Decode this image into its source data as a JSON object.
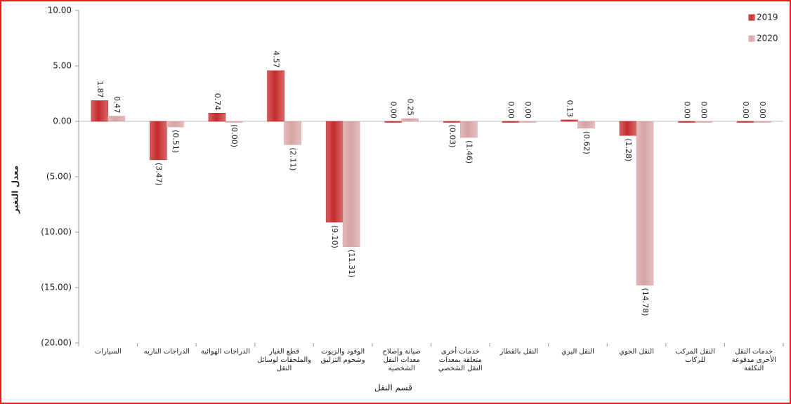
{
  "chart_data": {
    "type": "bar",
    "y_label": "معدل التغير",
    "x_label": "قسم النقل",
    "categories": [
      "السيارات",
      "الدراجات الناريه",
      "الدراجات الهوائية",
      "قطع الغيار والملحقات لوسائل النقل",
      "الوقود والزيوت وشحوم التزليق",
      "صيانة وإصلاح معدات النقل الشخصيه",
      "خدمات أخرى متعلقة بمعدات النقل الشخصي",
      "النقل بالقطار",
      "النقل البري",
      "النقل الجوي",
      "النقل المركب للركاب",
      "خدمات النقل الأخرى مدفوعة التكلفة"
    ],
    "series": [
      {
        "name": "2019",
        "color": "#c62a2c",
        "values": [
          1.87,
          -3.47,
          0.74,
          4.57,
          -9.1,
          0.0,
          -0.03,
          0.0,
          0.13,
          -1.28,
          0.0,
          0.0
        ],
        "value_labels": [
          "1.87",
          "(3.47)",
          "0.74",
          "4.57",
          "(9.10)",
          "0.00",
          "(0.03)",
          "0.00",
          "0.13",
          "(1.28)",
          "0.00",
          "0.00"
        ]
      },
      {
        "name": "2020",
        "color": "#d7a3a3",
        "values": [
          0.47,
          -0.51,
          0.0,
          -2.11,
          -11.31,
          0.25,
          -1.46,
          0.0,
          -0.62,
          -14.78,
          0.0,
          0.0
        ],
        "value_labels": [
          "0.47",
          "(0.51)",
          "(0.00)",
          "(2.11)",
          "(11.31)",
          "0.25",
          "(1.46)",
          "0.00",
          "(0.62)",
          "(14.78)",
          "0.00",
          "0.00"
        ]
      }
    ],
    "ylim": [
      -20,
      10
    ],
    "yticks": [
      {
        "value": 10,
        "label": "10.00"
      },
      {
        "value": 5,
        "label": "5.00"
      },
      {
        "value": 0,
        "label": "0.00"
      },
      {
        "value": -5,
        "label": "(5.00)"
      },
      {
        "value": -10,
        "label": "(10.00)"
      },
      {
        "value": -15,
        "label": "(15.00)"
      },
      {
        "value": -20,
        "label": "(20.00)"
      }
    ],
    "legend": "top-right",
    "grid": false
  }
}
